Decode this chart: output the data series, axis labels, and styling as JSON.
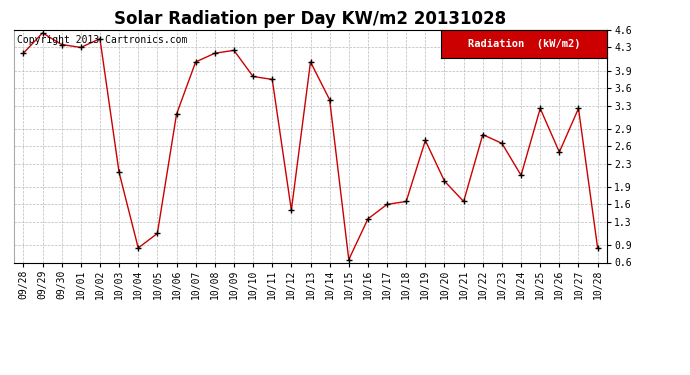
{
  "title": "Solar Radiation per Day KW/m2 20131028",
  "copyright_text": "Copyright 2013 Cartronics.com",
  "legend_label": "Radiation  (kW/m2)",
  "x_labels": [
    "09/28",
    "09/29",
    "09/30",
    "10/01",
    "10/02",
    "10/03",
    "10/04",
    "10/05",
    "10/06",
    "10/07",
    "10/08",
    "10/09",
    "10/10",
    "10/11",
    "10/12",
    "10/13",
    "10/14",
    "10/15",
    "10/16",
    "10/17",
    "10/18",
    "10/19",
    "10/20",
    "10/21",
    "10/22",
    "10/23",
    "10/24",
    "10/25",
    "10/26",
    "10/27",
    "10/28"
  ],
  "y_values": [
    4.2,
    4.55,
    4.35,
    4.3,
    4.45,
    2.15,
    0.85,
    1.1,
    3.15,
    4.05,
    4.2,
    4.25,
    3.8,
    3.75,
    1.5,
    4.05,
    3.4,
    0.65,
    1.35,
    1.6,
    1.65,
    2.7,
    2.0,
    1.65,
    2.8,
    2.65,
    2.1,
    3.25,
    2.5,
    3.25,
    0.85
  ],
  "line_color": "#cc0000",
  "marker_color": "#000000",
  "bg_color": "#ffffff",
  "grid_color": "#bbbbbb",
  "ylim": [
    0.6,
    4.6
  ],
  "yticks": [
    0.6,
    0.9,
    1.3,
    1.6,
    1.9,
    2.3,
    2.6,
    2.9,
    3.3,
    3.6,
    3.9,
    4.3,
    4.6
  ],
  "legend_bg": "#cc0000",
  "legend_text_color": "#ffffff",
  "title_fontsize": 12,
  "copyright_fontsize": 7,
  "tick_fontsize": 7,
  "legend_fontsize": 7.5
}
